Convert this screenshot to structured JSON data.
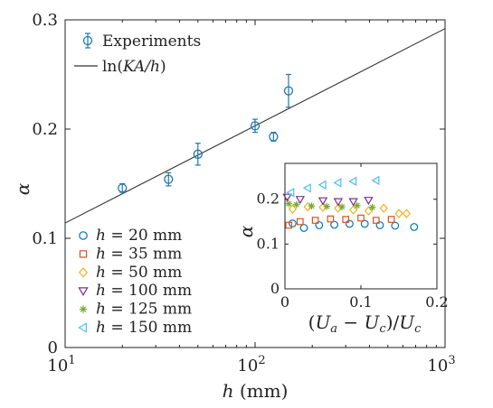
{
  "chart_data": [
    {
      "type": "scatter",
      "title": "",
      "xlabel": "h (mm)",
      "ylabel": "α",
      "xscale": "log",
      "xlim": [
        10,
        1000
      ],
      "ylim": [
        0,
        0.3
      ],
      "xticks": [
        {
          "value": 10,
          "base": "10",
          "exp": "1"
        },
        {
          "value": 100,
          "base": "10",
          "exp": "2"
        },
        {
          "value": 1000,
          "base": "10",
          "exp": "3"
        }
      ],
      "yticks": [
        "0",
        "0.1",
        "0.2",
        "0.3"
      ],
      "ytick_values": [
        0,
        0.1,
        0.2,
        0.3
      ],
      "legend_position": "top-left",
      "legend": {
        "experiments": "Experiments",
        "fit_pre": "ln(",
        "fit_mid": "KA/h",
        "fit_post": ")"
      },
      "series": [
        {
          "name": "Experiments",
          "marker": "circle-with-errorbars",
          "color": "#1f77b4",
          "x": [
            20,
            35,
            50,
            100,
            125,
            150
          ],
          "y": [
            0.146,
            0.154,
            0.177,
            0.203,
            0.193,
            0.235
          ],
          "error": [
            0.004,
            0.006,
            0.01,
            0.006,
            0.004,
            0.015
          ]
        },
        {
          "name": "ln(KA/h)",
          "type": "line",
          "color": "#333333",
          "x": [
            10,
            1000
          ],
          "y": [
            0.114,
            0.292
          ]
        }
      ]
    },
    {
      "type": "scatter",
      "title": "",
      "xlabel": "(Ua − Uc)/Uc",
      "ylabel": "α",
      "xlim": [
        0,
        0.2
      ],
      "ylim": [
        0,
        0.28
      ],
      "xticks": [
        "0",
        "0.1",
        "0.2"
      ],
      "xtick_values": [
        0,
        0.1,
        0.2
      ],
      "yticks": [
        "0",
        "0.1",
        "0.2"
      ],
      "ytick_values": [
        0,
        0.1,
        0.2
      ],
      "legend_position": "left (outside inset)",
      "series": [
        {
          "name": "h = 20 mm",
          "h": "20",
          "marker": "circle",
          "color": "#0072bd",
          "x": [
            0.01,
            0.025,
            0.045,
            0.065,
            0.085,
            0.105,
            0.125,
            0.145,
            0.17
          ],
          "y": [
            0.146,
            0.136,
            0.142,
            0.143,
            0.145,
            0.145,
            0.142,
            0.141,
            0.138
          ]
        },
        {
          "name": "h = 35 mm",
          "h": "35",
          "marker": "square",
          "color": "#d95319",
          "x": [
            0.005,
            0.02,
            0.04,
            0.06,
            0.08,
            0.1,
            0.12,
            0.14
          ],
          "y": [
            0.142,
            0.15,
            0.153,
            0.156,
            0.155,
            0.158,
            0.153,
            0.155
          ]
        },
        {
          "name": "h = 50 mm",
          "h": "50",
          "marker": "diamond",
          "color": "#edb120",
          "x": [
            0.01,
            0.03,
            0.05,
            0.07,
            0.09,
            0.11,
            0.13,
            0.15,
            0.16
          ],
          "y": [
            0.178,
            0.183,
            0.182,
            0.18,
            0.176,
            0.174,
            0.18,
            0.168,
            0.168
          ]
        },
        {
          "name": "h = 100 mm",
          "h": "100",
          "marker": "triangle-down",
          "color": "#7e2f8e",
          "x": [
            0.003,
            0.02,
            0.05,
            0.07,
            0.09,
            0.11
          ],
          "y": [
            0.205,
            0.2,
            0.197,
            0.195,
            0.195,
            0.198
          ]
        },
        {
          "name": "h = 125 mm",
          "h": "125",
          "marker": "asterisk",
          "color": "#77ac30",
          "x": [
            0.005,
            0.015,
            0.035,
            0.055,
            0.075,
            0.095,
            0.115
          ],
          "y": [
            0.19,
            0.188,
            0.185,
            0.184,
            0.183,
            0.186,
            0.182
          ]
        },
        {
          "name": "h = 150 mm",
          "h": "150",
          "marker": "triangle-left",
          "color": "#4dbeee",
          "x": [
            0.008,
            0.03,
            0.05,
            0.07,
            0.09,
            0.12
          ],
          "y": [
            0.215,
            0.225,
            0.232,
            0.237,
            0.24,
            0.242
          ]
        }
      ]
    }
  ],
  "legend_labels": {
    "prefix": "h",
    "unit": "mm"
  },
  "colors": {
    "axis": "#222222",
    "errorbar_series": "#1f77b4",
    "fit_line": "#333333"
  }
}
